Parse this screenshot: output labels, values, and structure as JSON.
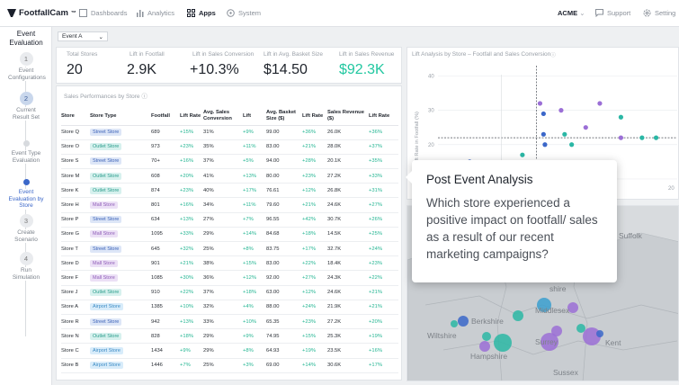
{
  "nav": {
    "logo": "FootfallCam",
    "tm": "™",
    "items": [
      {
        "label": "Dashboards",
        "icon": "dashboard-icon"
      },
      {
        "label": "Analytics",
        "icon": "bar-chart-icon"
      },
      {
        "label": "Apps",
        "icon": "apps-grid-icon",
        "active": true
      },
      {
        "label": "System",
        "icon": "system-icon"
      }
    ],
    "account": "ACME",
    "support": "Support",
    "settings": "Setting"
  },
  "sidebar": {
    "title": "Event Evaluation",
    "steps": [
      {
        "num": "1",
        "label": "Event Configurations"
      },
      {
        "num": "2",
        "label": "Current Result Set",
        "active": true
      },
      {
        "num": "",
        "label": "Event Type Evaluation"
      },
      {
        "num": "",
        "label": "Event Evaluation by Store",
        "active": true
      },
      {
        "num": "3",
        "label": "Create Scenario"
      },
      {
        "num": "4",
        "label": "Run Simulation"
      }
    ]
  },
  "filter": {
    "selected": "Event A"
  },
  "kpis": [
    {
      "label": "Total Stores",
      "value": "20"
    },
    {
      "label": "Lift in Footfall",
      "value": "2.9K"
    },
    {
      "label": "Lift in Sales Conversion",
      "value": "+10.3%"
    },
    {
      "label": "Lift in Avg. Basket Size",
      "value": "$14.50"
    },
    {
      "label": "Lift in Sales Revenue",
      "value": "$92.3K"
    }
  ],
  "table": {
    "title": "Sales Performances by Store",
    "headers": [
      "Store",
      "Store Type",
      "Footfall",
      "Lift Rate",
      "Avg. Sales Conversion",
      "Lift",
      "Avg. Basket Size ($)",
      "Lift Rate",
      "Sales Revenue ($)",
      "Lift Rate"
    ],
    "rows": [
      [
        "Store Q",
        "Street Store",
        "689",
        "+15%",
        "31%",
        "+9%",
        "99.00",
        "+36%",
        "26.0K",
        "+36%"
      ],
      [
        "Store O",
        "Outlet Store",
        "973",
        "+23%",
        "35%",
        "+11%",
        "83.00",
        "+21%",
        "28.0K",
        "+37%"
      ],
      [
        "Store S",
        "Street Store",
        "70+",
        "+16%",
        "37%",
        "+5%",
        "94.00",
        "+28%",
        "20.1K",
        "+35%"
      ],
      [
        "Store M",
        "Outlet Store",
        "608",
        "+20%",
        "41%",
        "+13%",
        "80.00",
        "+23%",
        "27.2K",
        "+33%"
      ],
      [
        "Store K",
        "Outlet Store",
        "874",
        "+23%",
        "40%",
        "+17%",
        "76.61",
        "+12%",
        "26.8K",
        "+31%"
      ],
      [
        "Store H",
        "Mall Store",
        "801",
        "+16%",
        "34%",
        "+11%",
        "79.60",
        "+21%",
        "24.6K",
        "+27%"
      ],
      [
        "Store P",
        "Street Store",
        "634",
        "+13%",
        "27%",
        "+7%",
        "96.55",
        "+42%",
        "30.7K",
        "+26%"
      ],
      [
        "Store G",
        "Mall Store",
        "1095",
        "+33%",
        "29%",
        "+14%",
        "84.68",
        "+18%",
        "14.5K",
        "+25%"
      ],
      [
        "Store T",
        "Street Store",
        "645",
        "+32%",
        "25%",
        "+8%",
        "83.75",
        "+17%",
        "32.7K",
        "+24%"
      ],
      [
        "Store D",
        "Mall Store",
        "901",
        "+21%",
        "38%",
        "+15%",
        "83.00",
        "+22%",
        "18.4K",
        "+23%"
      ],
      [
        "Store F",
        "Mall Store",
        "1085",
        "+30%",
        "36%",
        "+12%",
        "92.00",
        "+27%",
        "24.3K",
        "+22%"
      ],
      [
        "Store J",
        "Outlet Store",
        "910",
        "+22%",
        "37%",
        "+18%",
        "63.00",
        "+12%",
        "24.6K",
        "+21%"
      ],
      [
        "Store A",
        "Airport Store",
        "1385",
        "+10%",
        "32%",
        "+4%",
        "88.00",
        "+24%",
        "21.9K",
        "+21%"
      ],
      [
        "Store R",
        "Street Store",
        "942",
        "+13%",
        "33%",
        "+10%",
        "65.35",
        "+23%",
        "27.2K",
        "+20%"
      ],
      [
        "Store N",
        "Outlet Store",
        "828",
        "+18%",
        "29%",
        "+9%",
        "74.95",
        "+15%",
        "25.3K",
        "+19%"
      ],
      [
        "Store C",
        "Airport Store",
        "1434",
        "+9%",
        "29%",
        "+8%",
        "64.93",
        "+19%",
        "23.5K",
        "+16%"
      ],
      [
        "Store B",
        "Airport Store",
        "1446",
        "+7%",
        "25%",
        "+3%",
        "69.00",
        "+14%",
        "30.6K",
        "+17%"
      ]
    ]
  },
  "scatter": {
    "title": "Lift Analysis by Store – Footfall and Sales Conversion",
    "ylabel": "Lift Rate in Footfall (%)"
  },
  "chart_data": {
    "type": "scatter",
    "title": "Lift Analysis by Store – Footfall and Sales Conversion",
    "ylabel": "Lift Rate in Footfall (%)",
    "yticks": [
      "40",
      "30",
      "20",
      "10"
    ],
    "xtick_right": "20",
    "ylim": [
      5,
      43
    ],
    "xlim": [
      -14,
      20
    ],
    "points": [
      {
        "x": 0.5,
        "y": 32,
        "color": "#9b6fd6"
      },
      {
        "x": 1.0,
        "y": 29,
        "color": "#3b67c9"
      },
      {
        "x": 1.0,
        "y": 23,
        "color": "#3b67c9"
      },
      {
        "x": 1.2,
        "y": 20,
        "color": "#3b67c9"
      },
      {
        "x": 3.5,
        "y": 30,
        "color": "#9b6fd6"
      },
      {
        "x": 4.0,
        "y": 23,
        "color": "#2bb7a5"
      },
      {
        "x": 7.0,
        "y": 25,
        "color": "#9b6fd6"
      },
      {
        "x": 9.0,
        "y": 32,
        "color": "#9b6fd6"
      },
      {
        "x": 12.0,
        "y": 28,
        "color": "#2bb7a5"
      },
      {
        "x": 12.0,
        "y": 22,
        "color": "#9b6fd6"
      },
      {
        "x": 15.0,
        "y": 22,
        "color": "#2bb7a5"
      },
      {
        "x": 17.0,
        "y": 22,
        "color": "#2bb7a5"
      },
      {
        "x": 5.0,
        "y": 20,
        "color": "#2bb7a5"
      },
      {
        "x": -9.5,
        "y": 15,
        "color": "#3b67c9"
      },
      {
        "x": -11.0,
        "y": 10,
        "color": "#3b67c9"
      },
      {
        "x": -5.5,
        "y": 11,
        "color": "#3b67c9"
      },
      {
        "x": -3.5,
        "y": 13,
        "color": "#3b67c9"
      },
      {
        "x": -2.0,
        "y": 17,
        "color": "#2bb7a5"
      },
      {
        "x": -4.5,
        "y": 9,
        "color": "#3b67c9"
      }
    ]
  },
  "map": {
    "labels": [
      "Suffolk",
      "Berkshire",
      "Middlesex",
      "Wiltshire",
      "Surrey",
      "Kent",
      "Hampshire",
      "Sussex",
      "shire"
    ]
  },
  "tooltip": {
    "title": "Post Event Analysis",
    "body": "Which store experienced a positive impact on footfall/ sales as a result of our recent marketing campaigns?"
  }
}
